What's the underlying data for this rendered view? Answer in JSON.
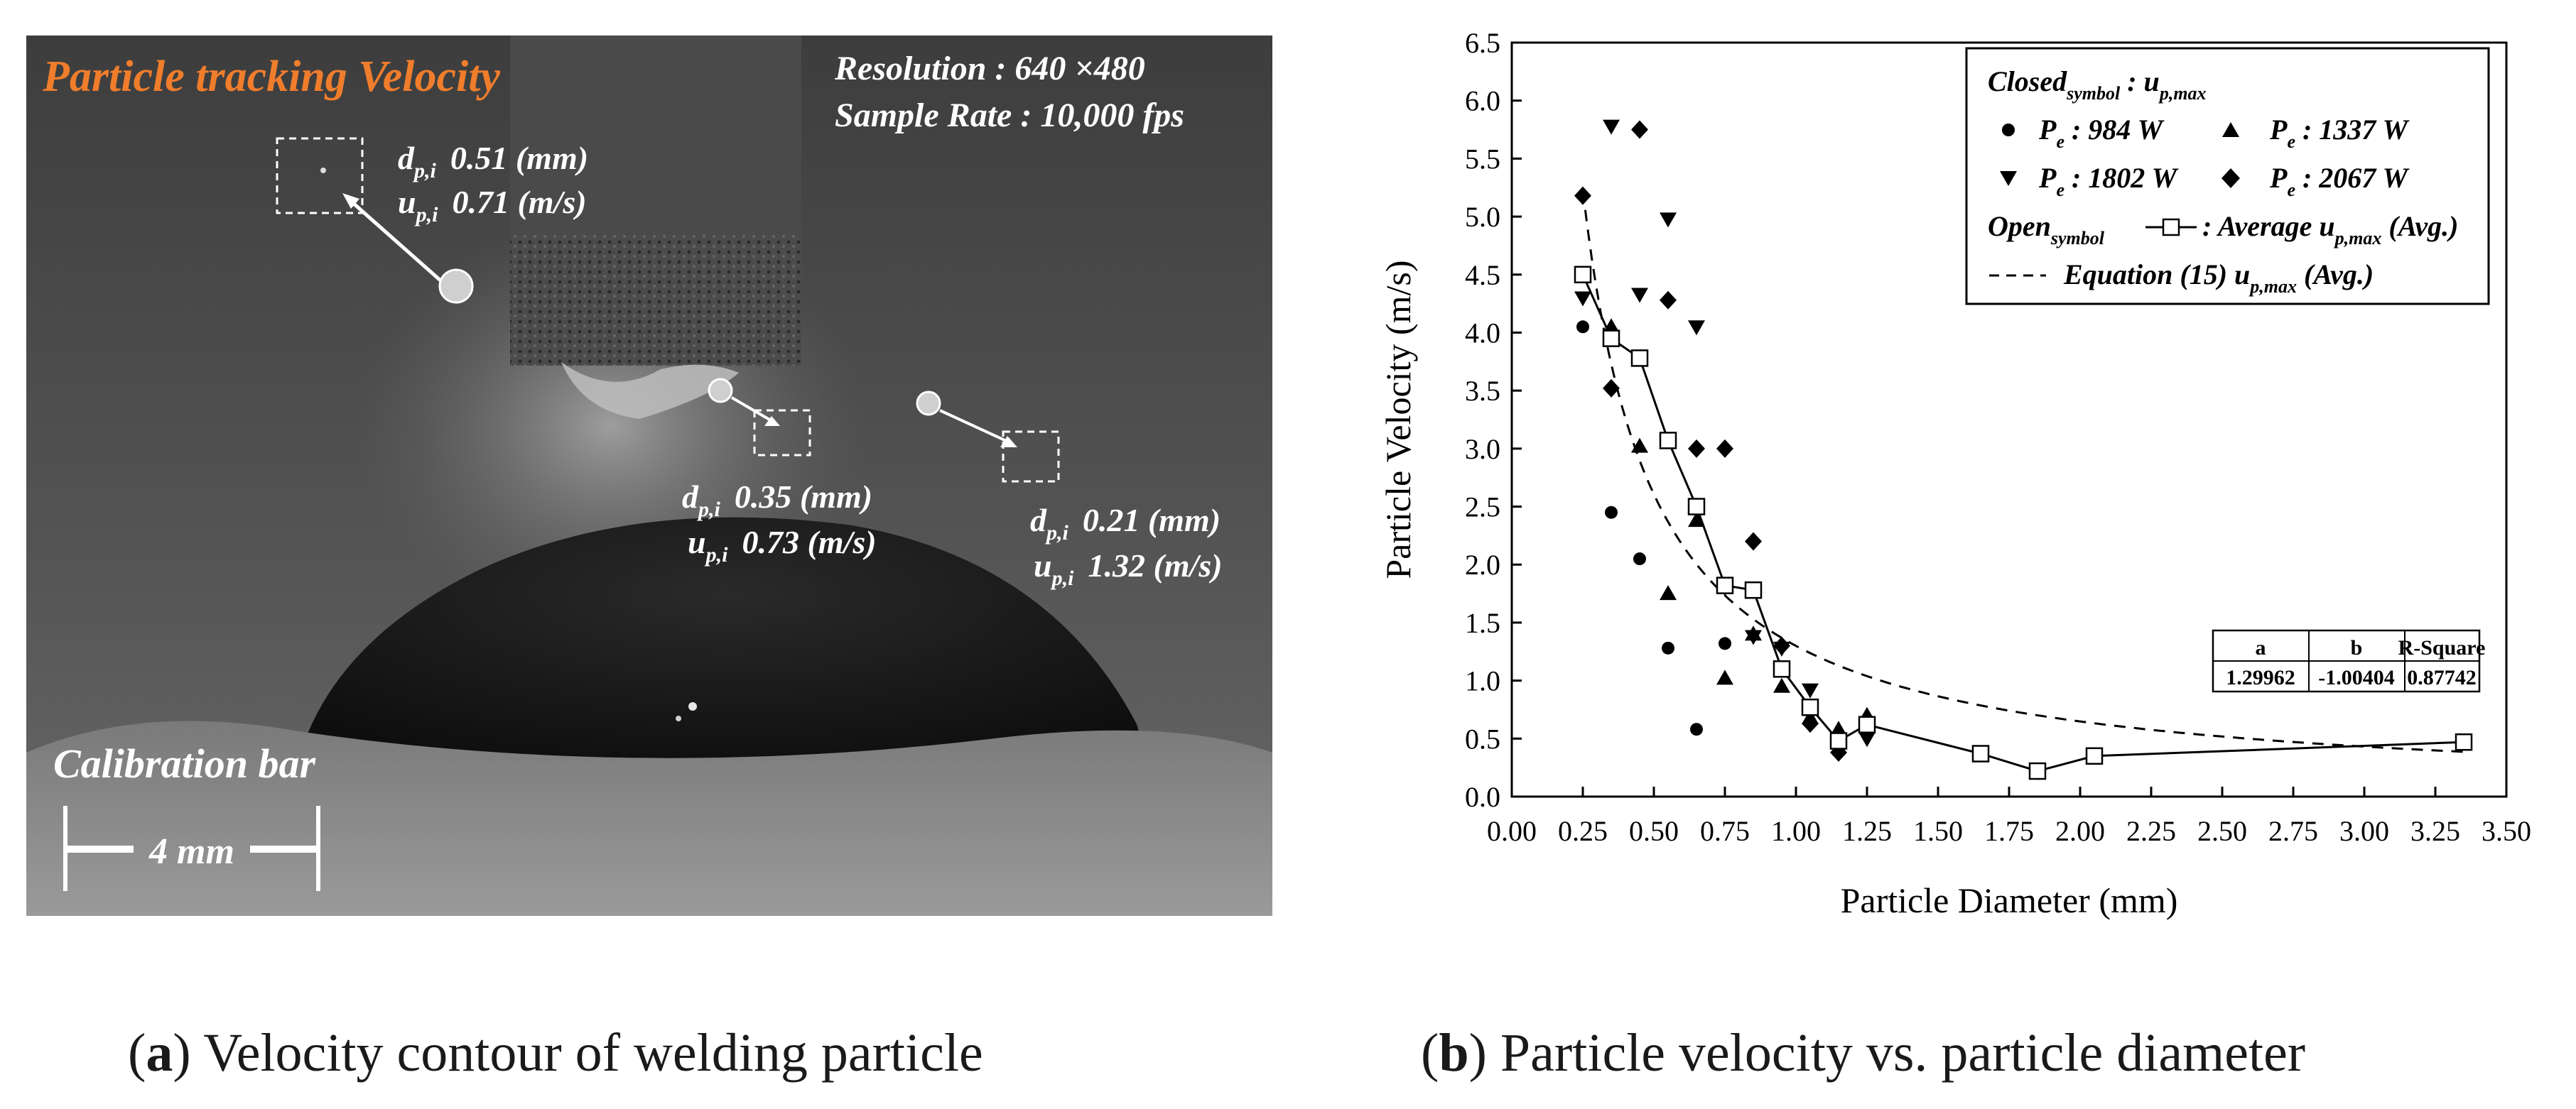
{
  "panel_a": {
    "title": "Particle tracking Velocity",
    "resolution": "Resolution : 640 ×480",
    "sample_rate": "Sample Rate : 10,000 fps",
    "calibration_title": "Calibration bar",
    "calibration_length": "4 mm",
    "particles": [
      {
        "d_label": "d",
        "d_sub": "p,i",
        "d_value": "0.51 (mm)",
        "u_label": "u",
        "u_sub": "p,i",
        "u_value": "0.71 (m/s)"
      },
      {
        "d_label": "d",
        "d_sub": "p,i",
        "d_value": "0.35 (mm)",
        "u_label": "u",
        "u_sub": "p,i",
        "u_value": "0.73 (m/s)"
      },
      {
        "d_label": "d",
        "d_sub": "p,i",
        "d_value": "0.21 (mm)",
        "u_label": "u",
        "u_sub": "p,i",
        "u_value": "1.32 (m/s)"
      }
    ]
  },
  "captions": {
    "a_letter": "a",
    "a_text": "Velocity contour of welding particle",
    "b_letter": "b",
    "b_text": "Particle velocity vs. particle diameter"
  },
  "legend": {
    "closed_main": "Closed",
    "closed_sub": "symbol",
    "closed_rest": " : u",
    "closed_rest_sub": "p,max",
    "entries": [
      {
        "p": "P",
        "p_sub": "e",
        "text": " : 984 W"
      },
      {
        "p": "P",
        "p_sub": "e",
        "text": " : 1337 W"
      },
      {
        "p": "P",
        "p_sub": "e",
        "text": " : 1802 W"
      },
      {
        "p": "P",
        "p_sub": "e",
        "text": " : 2067 W"
      }
    ],
    "open_main": "Open",
    "open_sub": "symbol",
    "open_rest": " : Average u",
    "open_rest_sub": "p,max",
    "open_tail": " (Avg.)",
    "eq_text": "Equation (15) u",
    "eq_sub": "p,max",
    "eq_tail": " (Avg.)"
  },
  "fit_table": {
    "headers": [
      "a",
      "b",
      "R-Square"
    ],
    "values": [
      "1.29962",
      "-1.00404",
      "0.87742"
    ]
  },
  "chart_data": {
    "type": "scatter",
    "xlabel": "Particle Diameter (mm)",
    "ylabel": "Particle Velocity (m/s)",
    "xlim": [
      0.0,
      3.5
    ],
    "ylim": [
      0.0,
      6.5
    ],
    "xticks": [
      "0.00",
      "0.25",
      "0.50",
      "0.75",
      "1.00",
      "1.25",
      "1.50",
      "1.75",
      "2.00",
      "2.25",
      "2.50",
      "2.75",
      "3.00",
      "3.25",
      "3.50"
    ],
    "yticks": [
      "0.0",
      "0.5",
      "1.0",
      "1.5",
      "2.0",
      "2.5",
      "3.0",
      "3.5",
      "4.0",
      "4.5",
      "5.0",
      "5.5",
      "6.0",
      "6.5"
    ],
    "series": [
      {
        "name": "Pe : 984 W",
        "marker": "circle",
        "x": [
          0.25,
          0.35,
          0.45,
          0.55,
          0.65,
          0.75,
          1.15,
          1.25,
          1.85
        ],
        "y": [
          4.05,
          2.45,
          2.05,
          1.28,
          0.58,
          1.32,
          0.5,
          0.55,
          0.2
        ]
      },
      {
        "name": "Pe : 1337 W",
        "marker": "triangle-up",
        "x": [
          0.35,
          0.45,
          0.55,
          0.65,
          0.75,
          0.85,
          0.95,
          1.05,
          1.15,
          1.25,
          1.85
        ],
        "y": [
          4.05,
          3.02,
          1.75,
          2.38,
          1.02,
          1.4,
          0.95,
          0.68,
          0.58,
          0.7,
          0.22
        ]
      },
      {
        "name": "Pe : 1802 W",
        "marker": "triangle-down",
        "x": [
          0.25,
          0.35,
          0.45,
          0.55,
          0.65,
          0.75,
          0.85,
          0.95,
          1.05,
          1.15,
          1.25
        ],
        "y": [
          4.3,
          5.78,
          4.33,
          4.98,
          4.05,
          1.8,
          1.38,
          1.28,
          0.92,
          0.45,
          0.5
        ]
      },
      {
        "name": "Pe : 2067 W",
        "marker": "diamond",
        "x": [
          0.25,
          0.35,
          0.45,
          0.55,
          0.65,
          0.75,
          0.85,
          0.95,
          1.05,
          1.15,
          1.25
        ],
        "y": [
          5.18,
          3.52,
          5.75,
          4.28,
          3.0,
          3.0,
          2.2,
          1.3,
          0.63,
          0.38,
          0.55
        ]
      },
      {
        "name": "Average up,max (Avg.)",
        "marker": "square-open",
        "line": "solid",
        "x": [
          0.25,
          0.35,
          0.45,
          0.55,
          0.65,
          0.75,
          0.85,
          0.95,
          1.05,
          1.15,
          1.25,
          1.65,
          1.85,
          2.05,
          3.35
        ],
        "y": [
          4.5,
          3.95,
          3.78,
          3.07,
          2.5,
          1.82,
          1.78,
          1.1,
          0.77,
          0.48,
          0.62,
          0.37,
          0.22,
          0.35,
          0.47
        ]
      }
    ],
    "fit_curve": {
      "name": "Equation (15) up,max (Avg.)",
      "line": "dashed",
      "a": 1.29962,
      "b": -1.00404,
      "r_square": 0.87742
    }
  }
}
